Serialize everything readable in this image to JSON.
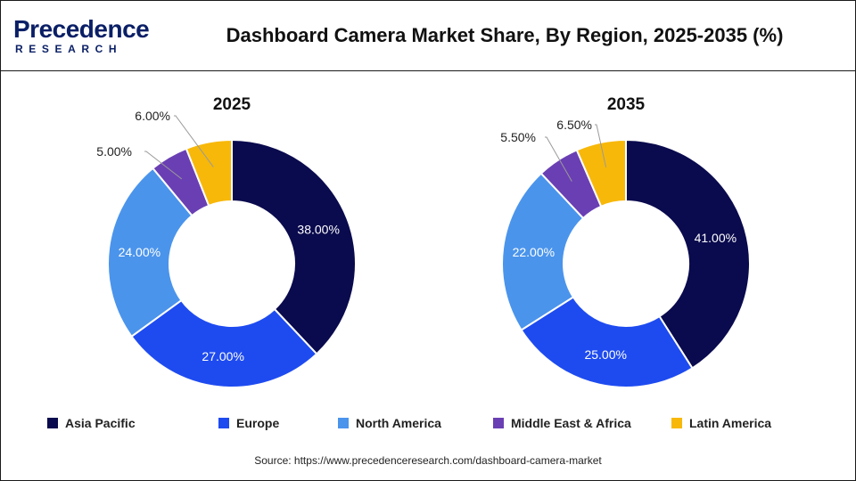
{
  "header": {
    "logo_word": "Precedence",
    "logo_sub": "RESEARCH",
    "title": "Dashboard Camera Market Share, By Region, 2025-2035 (%)"
  },
  "colors": {
    "Asia Pacific": "#0a0a4e",
    "Europe": "#1e4bf0",
    "North America": "#4a94ec",
    "Middle East & Africa": "#6a3fb3",
    "Latin America": "#f7b80a"
  },
  "chart_data": [
    {
      "type": "pie",
      "variant": "donut",
      "title": "2025",
      "categories": [
        "Asia Pacific",
        "Europe",
        "North America",
        "Middle East & Africa",
        "Latin America"
      ],
      "values": [
        38.0,
        27.0,
        24.0,
        5.0,
        6.0
      ],
      "labels": [
        "38.00%",
        "27.00%",
        "24.00%",
        "5.00%",
        "6.00%"
      ]
    },
    {
      "type": "pie",
      "variant": "donut",
      "title": "2035",
      "categories": [
        "Asia Pacific",
        "Europe",
        "North America",
        "Middle East & Africa",
        "Latin America"
      ],
      "values": [
        41.0,
        25.0,
        22.0,
        5.5,
        6.5
      ],
      "labels": [
        "41.00%",
        "25.00%",
        "22.00%",
        "5.50%",
        "6.50%"
      ]
    }
  ],
  "legend": {
    "position": "bottom",
    "items": [
      "Asia Pacific",
      "Europe",
      "North America",
      "Middle East & Africa",
      "Latin America"
    ]
  },
  "source": "Source: https://www.precedenceresearch.com/dashboard-camera-market"
}
